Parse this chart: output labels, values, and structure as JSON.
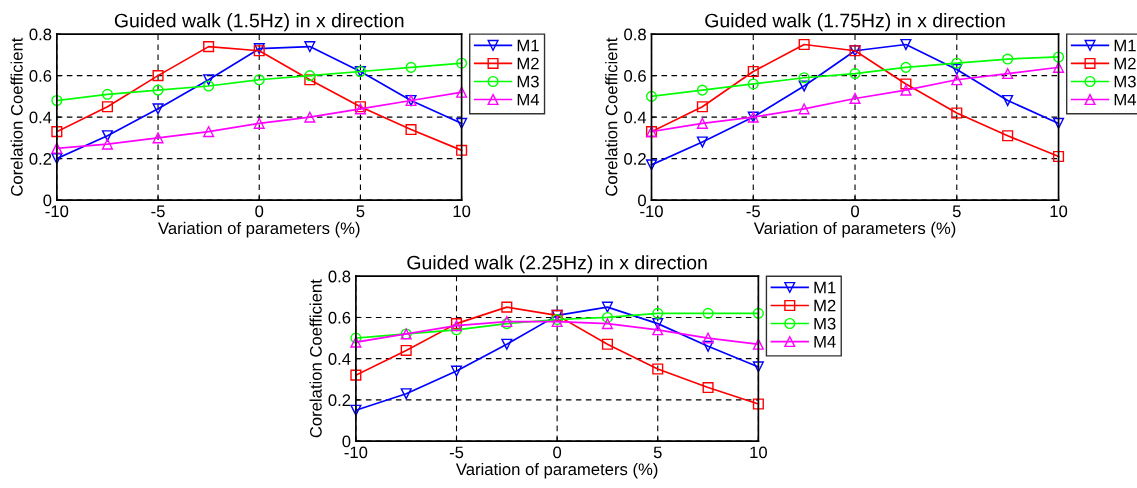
{
  "chart_data": [
    {
      "type": "line",
      "title": "Guided walk (1.5Hz) in x direction",
      "xlabel": "Variation of parameters (%)",
      "ylabel": "Corelation Coefficient",
      "x": [
        -10,
        -7.5,
        -5,
        -2.5,
        0,
        2.5,
        5,
        7.5,
        10
      ],
      "xlim": [
        -10,
        10
      ],
      "xticks": [
        -10,
        -5,
        0,
        5,
        10
      ],
      "ylim": [
        0,
        0.8
      ],
      "yticks": [
        0,
        0.2,
        0.4,
        0.6,
        0.8
      ],
      "grid": true,
      "legend": "right",
      "line_style": "solid",
      "series": [
        {
          "name": "M1",
          "color": "#0000ff",
          "marker": "triangle_down",
          "values": [
            0.2,
            0.31,
            0.44,
            0.58,
            0.73,
            0.74,
            0.62,
            0.48,
            0.37
          ]
        },
        {
          "name": "M2",
          "color": "#ff0000",
          "marker": "square",
          "values": [
            0.33,
            0.45,
            0.6,
            0.74,
            0.72,
            0.58,
            0.45,
            0.34,
            0.24
          ]
        },
        {
          "name": "M3",
          "color": "#00ff00",
          "marker": "circle",
          "values": [
            0.48,
            0.51,
            0.53,
            0.55,
            0.58,
            0.6,
            0.62,
            0.64,
            0.66
          ]
        },
        {
          "name": "M4",
          "color": "#ff00ff",
          "marker": "triangle",
          "values": [
            0.25,
            0.27,
            0.3,
            0.33,
            0.37,
            0.4,
            0.44,
            0.48,
            0.52
          ]
        }
      ]
    },
    {
      "type": "line",
      "title": "Guided walk (1.75Hz) in x direction",
      "xlabel": "Variation of parameters (%)",
      "ylabel": "Corelation Coefficient",
      "x": [
        -10,
        -7.5,
        -5,
        -2.5,
        0,
        2.5,
        5,
        7.5,
        10
      ],
      "xlim": [
        -10,
        10
      ],
      "xticks": [
        -10,
        -5,
        0,
        5,
        10
      ],
      "ylim": [
        0,
        0.8
      ],
      "yticks": [
        0,
        0.2,
        0.4,
        0.6,
        0.8
      ],
      "grid": true,
      "legend": "right",
      "line_style": "solid",
      "series": [
        {
          "name": "M1",
          "color": "#0000ff",
          "marker": "triangle_down",
          "values": [
            0.17,
            0.28,
            0.4,
            0.55,
            0.72,
            0.75,
            0.63,
            0.48,
            0.37
          ]
        },
        {
          "name": "M2",
          "color": "#ff0000",
          "marker": "square",
          "values": [
            0.33,
            0.45,
            0.62,
            0.75,
            0.72,
            0.56,
            0.42,
            0.31,
            0.21
          ]
        },
        {
          "name": "M3",
          "color": "#00ff00",
          "marker": "circle",
          "values": [
            0.5,
            0.53,
            0.56,
            0.59,
            0.61,
            0.64,
            0.66,
            0.68,
            0.69
          ]
        },
        {
          "name": "M4",
          "color": "#ff00ff",
          "marker": "triangle",
          "values": [
            0.33,
            0.37,
            0.4,
            0.44,
            0.49,
            0.53,
            0.58,
            0.61,
            0.64
          ]
        }
      ]
    },
    {
      "type": "line",
      "title": "Guided walk (2.25Hz) in x direction",
      "xlabel": "Variation of parameters (%)",
      "ylabel": "Corelation Coefficient",
      "x": [
        -10,
        -7.5,
        -5,
        -2.5,
        0,
        2.5,
        5,
        7.5,
        10
      ],
      "xlim": [
        -10,
        10
      ],
      "xticks": [
        -10,
        -5,
        0,
        5,
        10
      ],
      "ylim": [
        0,
        0.8
      ],
      "yticks": [
        0,
        0.2,
        0.4,
        0.6,
        0.8
      ],
      "grid": true,
      "legend": "right",
      "line_style": "solid",
      "series": [
        {
          "name": "M1",
          "color": "#0000ff",
          "marker": "triangle_down",
          "values": [
            0.15,
            0.23,
            0.34,
            0.47,
            0.61,
            0.65,
            0.57,
            0.46,
            0.36
          ]
        },
        {
          "name": "M2",
          "color": "#ff0000",
          "marker": "square",
          "values": [
            0.32,
            0.44,
            0.57,
            0.65,
            0.61,
            0.47,
            0.35,
            0.26,
            0.18
          ]
        },
        {
          "name": "M3",
          "color": "#00ff00",
          "marker": "circle",
          "values": [
            0.5,
            0.52,
            0.54,
            0.57,
            0.59,
            0.6,
            0.62,
            0.62,
            0.62
          ]
        },
        {
          "name": "M4",
          "color": "#ff00ff",
          "marker": "triangle",
          "values": [
            0.48,
            0.52,
            0.56,
            0.58,
            0.58,
            0.57,
            0.54,
            0.5,
            0.47
          ]
        }
      ]
    }
  ]
}
